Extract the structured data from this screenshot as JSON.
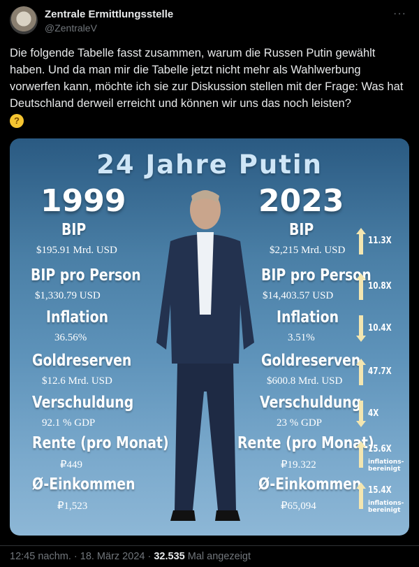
{
  "post": {
    "display_name": "Zentrale Ermittlungsstelle",
    "handle": "@ZentraleV",
    "more_label": "···",
    "text": "Die folgende Tabelle fasst zusammen, warum die Russen Putin gewählt haben. Und da man mir die Tabelle jetzt nicht mehr als Wahlwerbung vorwerfen kann, möchte ich sie zur Diskussion stellen mit der Frage: Was hat Deutschland derweil erreicht und können wir uns das noch leisten?",
    "emoji_icon": "thinking-face-icon",
    "timestamp": "12:45 nachm. · 18. März 2024 ·",
    "views_count": "32.535",
    "views_label": "Mal angezeigt"
  },
  "infographic": {
    "title": "24 Jahre Putin",
    "year_left": "1999",
    "year_right": "2023",
    "rows": [
      {
        "label": "BIP",
        "left": "$195.91 Mrd. USD",
        "right": "$2,215 Mrd. USD",
        "mult": "11.3X",
        "dir": "up",
        "note": ""
      },
      {
        "label": "BIP pro Person",
        "left": "$1,330.79 USD",
        "right": "$14,403.57 USD",
        "mult": "10.8X",
        "dir": "up",
        "note": ""
      },
      {
        "label": "Inflation",
        "left": "36.56%",
        "right": "3.51%",
        "mult": "10.4X",
        "dir": "down",
        "note": ""
      },
      {
        "label": "Goldreserven",
        "left": "$12.6 Mrd. USD",
        "right": "$600.8 Mrd. USD",
        "mult": "47.7X",
        "dir": "up",
        "note": ""
      },
      {
        "label": "Verschuldung",
        "left": "92.1 % GDP",
        "right": "23 % GDP",
        "mult": "4X",
        "dir": "down",
        "note": ""
      },
      {
        "label": "Rente (pro Monat)",
        "left": "₽449",
        "right": "₽19.322",
        "mult": "15.6X",
        "dir": "up",
        "note": "inflations-bereinigt"
      },
      {
        "label": "Ø-Einkommen",
        "left": "₽1,523",
        "right": "₽65,094",
        "mult": "15.4X",
        "dir": "up",
        "note": "inflations-bereinigt"
      }
    ]
  },
  "colors": {
    "arrow": "#f3e6b0",
    "background": "#000000",
    "muted": "#71767b"
  }
}
